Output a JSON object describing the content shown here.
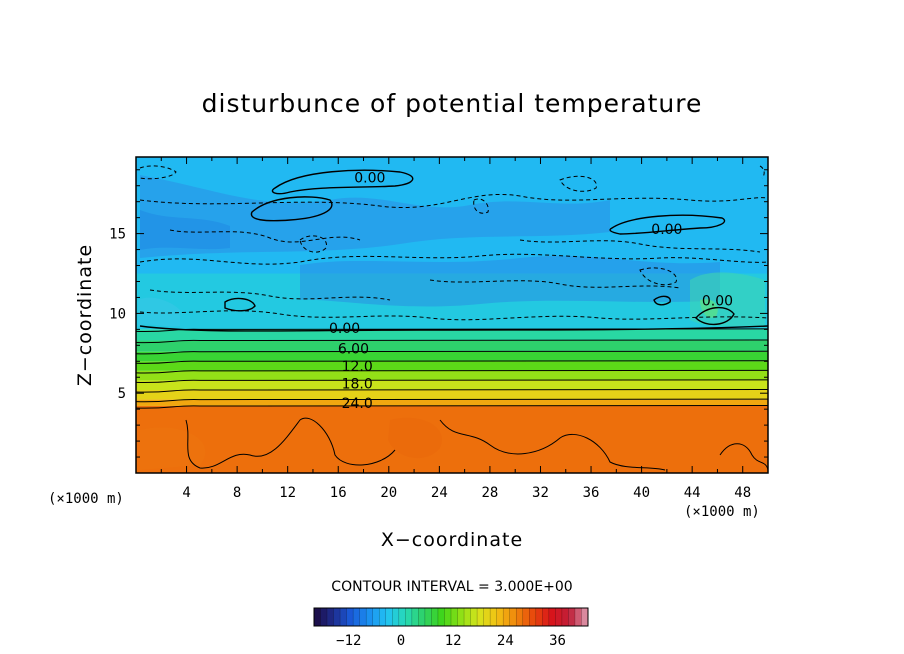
{
  "chart_data": {
    "type": "heatmap",
    "title": "disturbunce of potential temperature",
    "xlabel": "X−coordinate",
    "ylabel": "Z−coordinate",
    "x_unit": "(×1000 m)",
    "y_unit": "(×1000 m)",
    "xlim": [
      0,
      50
    ],
    "ylim": [
      0,
      19.8
    ],
    "x_ticks": [
      4,
      8,
      12,
      16,
      20,
      24,
      28,
      32,
      36,
      40,
      44,
      48
    ],
    "y_ticks": [
      5,
      10,
      15
    ],
    "contour_interval_text": "CONTOUR INTERVAL = 3.000E+00",
    "contour_levels": [
      0,
      3,
      6,
      9,
      12,
      15,
      18,
      21,
      24
    ],
    "contour_labels": [
      {
        "text": "0.00",
        "x": 18.5,
        "z": 18.5
      },
      {
        "text": "0.00",
        "x": 42,
        "z": 15.3
      },
      {
        "text": "0.00",
        "x": 46,
        "z": 10.8
      },
      {
        "text": "0.00",
        "x": 16.5,
        "z": 9.1
      },
      {
        "text": "6.00",
        "x": 17.2,
        "z": 7.8
      },
      {
        "text": "12.0",
        "x": 17.5,
        "z": 6.7
      },
      {
        "text": "18.0",
        "x": 17.5,
        "z": 5.6
      },
      {
        "text": "24.0",
        "x": 17.5,
        "z": 4.4
      }
    ],
    "field_bands": [
      {
        "z_from": 0,
        "z_to": 4.2,
        "value": 28
      },
      {
        "z_from": 4.2,
        "z_to": 4.6,
        "value": 24
      },
      {
        "z_from": 4.6,
        "z_to": 5.2,
        "value": 20
      },
      {
        "z_from": 5.2,
        "z_to": 5.8,
        "value": 17
      },
      {
        "z_from": 5.8,
        "z_to": 6.4,
        "value": 14
      },
      {
        "z_from": 6.4,
        "z_to": 7.0,
        "value": 11
      },
      {
        "z_from": 7.0,
        "z_to": 7.6,
        "value": 8
      },
      {
        "z_from": 7.6,
        "z_to": 8.3,
        "value": 5
      },
      {
        "z_from": 8.3,
        "z_to": 9.0,
        "value": 2
      },
      {
        "z_from": 9.0,
        "z_to": 12.5,
        "value": -2
      },
      {
        "z_from": 12.5,
        "z_to": 19.8,
        "value": -4
      }
    ],
    "colorbar": {
      "range": [
        -20,
        43
      ],
      "tick_values": [
        -12,
        0,
        12,
        24,
        36
      ],
      "tick_labels": [
        "−12",
        "0",
        "12",
        "24",
        "36"
      ],
      "colors": [
        "#1c0a3e",
        "#1e2a8a",
        "#1a5ad8",
        "#1b8ff0",
        "#22c3f2",
        "#27d9b6",
        "#2ed168",
        "#3fd51a",
        "#8ce016",
        "#d6e41c",
        "#f2c214",
        "#f08a0c",
        "#e84a0c",
        "#d8141a",
        "#c0203a",
        "#e0a0b4"
      ]
    }
  }
}
